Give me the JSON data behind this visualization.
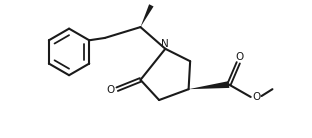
{
  "bg_color": "#ffffff",
  "line_color": "#1a1a1a",
  "line_width": 1.5,
  "figsize": [
    3.12,
    1.38
  ],
  "dpi": 100,
  "xlim": [
    0,
    10
  ],
  "ylim": [
    0,
    4.4
  ]
}
